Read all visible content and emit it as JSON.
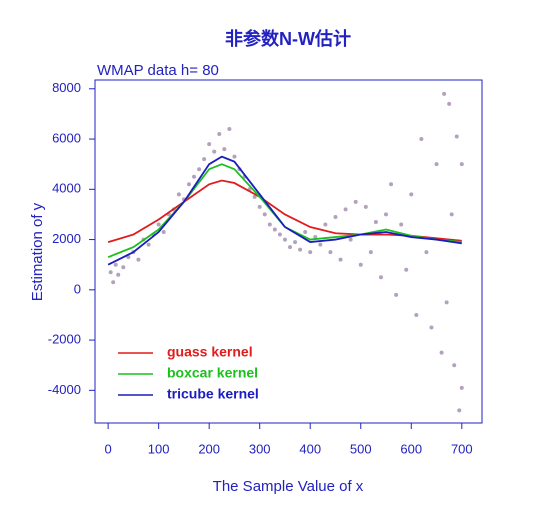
{
  "chart_data": {
    "type": "line",
    "title": "非参数N-W估计",
    "subtitle": "WMAP data h= 80",
    "x_label": "The Sample Value of x",
    "y_label": "Estimation of y",
    "xlim": [
      -26,
      740
    ],
    "xticks": [
      0,
      100,
      200,
      300,
      400,
      500,
      600,
      700
    ],
    "ylim": [
      -5300,
      8350
    ],
    "yticks": [
      -4000,
      -2000,
      0,
      2000,
      4000,
      6000,
      8000
    ],
    "legend": "bottom-left",
    "series": [
      {
        "type": "scatter",
        "color": "#b3a1bd",
        "x": [
          5,
          10,
          15,
          20,
          30,
          40,
          50,
          60,
          70,
          80,
          90,
          100,
          110,
          120,
          130,
          140,
          150,
          160,
          170,
          180,
          190,
          200,
          210,
          220,
          230,
          240,
          250,
          260,
          270,
          280,
          290,
          300,
          310,
          320,
          330,
          340,
          350,
          360,
          370,
          380,
          390,
          400,
          410,
          420,
          430,
          440,
          450,
          460,
          470,
          480,
          490,
          500,
          510,
          520,
          530,
          540,
          550,
          560,
          570,
          580,
          590,
          600,
          610,
          620,
          630,
          640,
          650,
          660,
          665,
          670,
          675,
          680,
          685,
          690,
          695,
          700,
          700
        ],
        "values": [
          700,
          300,
          1000,
          600,
          900,
          1300,
          1500,
          1200,
          2000,
          1800,
          2200,
          2600,
          2300,
          3000,
          3200,
          3800,
          3600,
          4200,
          4500,
          4800,
          5200,
          5800,
          5500,
          6200,
          5600,
          6400,
          5300,
          4800,
          4500,
          4000,
          3700,
          3300,
          3000,
          2600,
          2400,
          2200,
          2000,
          1700,
          1900,
          1600,
          2300,
          1500,
          2100,
          1800,
          2600,
          1500,
          2900,
          1200,
          3200,
          2000,
          3500,
          1000,
          3300,
          1500,
          2700,
          500,
          3000,
          4200,
          -200,
          2600,
          800,
          3800,
          -1000,
          6000,
          1500,
          -1500,
          5000,
          -2500,
          7800,
          -500,
          7400,
          3000,
          -3000,
          6100,
          -4800,
          5000,
          -3900
        ]
      },
      {
        "type": "line",
        "name": "guass kernel",
        "color": "#e01c1c",
        "x": [
          0,
          50,
          100,
          150,
          200,
          225,
          250,
          300,
          350,
          400,
          450,
          500,
          550,
          600,
          650,
          700
        ],
        "values": [
          1900,
          2200,
          2800,
          3500,
          4200,
          4350,
          4250,
          3700,
          3000,
          2500,
          2250,
          2200,
          2200,
          2150,
          2050,
          1950
        ]
      },
      {
        "type": "line",
        "name": "boxcar kernel",
        "color": "#1cc01c",
        "x": [
          0,
          50,
          100,
          150,
          200,
          225,
          250,
          300,
          350,
          400,
          450,
          500,
          550,
          600,
          650,
          700
        ],
        "values": [
          1300,
          1700,
          2400,
          3500,
          4800,
          5000,
          4800,
          3700,
          2500,
          2000,
          2100,
          2200,
          2400,
          2150,
          2000,
          1900
        ]
      },
      {
        "type": "line",
        "name": "tricube kernel",
        "color": "#1c1cc0",
        "x": [
          0,
          50,
          100,
          150,
          200,
          225,
          250,
          300,
          350,
          400,
          450,
          500,
          550,
          600,
          650,
          700
        ],
        "values": [
          1000,
          1500,
          2300,
          3500,
          5000,
          5300,
          5100,
          3800,
          2500,
          1900,
          2000,
          2200,
          2300,
          2100,
          2000,
          1850
        ]
      }
    ]
  }
}
